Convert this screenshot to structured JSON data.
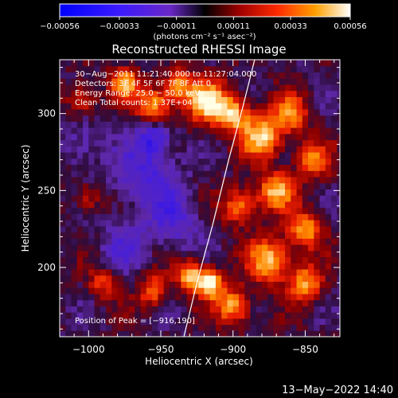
{
  "chart_data": {
    "type": "heatmap",
    "title": "Reconstructed RHESSI Image",
    "xlabel": "Heliocentric X (arcsec)",
    "ylabel": "Heliocentric Y (arcsec)",
    "xlim": [
      -1020,
      -826
    ],
    "ylim": [
      155,
      335
    ],
    "x_ticks": [
      {
        "value": -1000,
        "label": "−1000"
      },
      {
        "value": -950,
        "label": "−950"
      },
      {
        "value": -900,
        "label": "−900"
      },
      {
        "value": -850,
        "label": "−850"
      }
    ],
    "y_ticks": [
      {
        "value": 200,
        "label": "200"
      },
      {
        "value": 250,
        "label": "250"
      },
      {
        "value": 300,
        "label": "300"
      }
    ],
    "colorbar": {
      "min": -0.00056,
      "max": 0.00056,
      "ticks": [
        {
          "value": -0.00056,
          "label": "−0.00056"
        },
        {
          "value": -0.00033,
          "label": "−0.00033"
        },
        {
          "value": -0.00011,
          "label": "−0.00011"
        },
        {
          "value": 0.00011,
          "label": "0.00011"
        },
        {
          "value": 0.00033,
          "label": "0.00033"
        },
        {
          "value": 0.00056,
          "label": "0.00056"
        }
      ],
      "unit_label": "(photons cm⁻² s⁻¹ asec⁻²)"
    },
    "annotations": [
      "30−Aug−2011 11:21:40.000 to 11:27:04.000",
      "Detectors: 3F 4F 5F 6F 7F 8F  Att 0",
      "Energy Range: 25.0 − 50.0 keV",
      "Clean     Total counts: 1.37E+04"
    ],
    "peak_label": "Position of Peak = [−916,190]",
    "peak": [
      -916,
      190
    ],
    "limb_points": [
      [
        -934,
        155
      ],
      [
        -925,
        190
      ],
      [
        -914,
        228
      ],
      [
        -903,
        270
      ],
      [
        -893,
        305
      ],
      [
        -885,
        335
      ]
    ],
    "hot_regions": [
      {
        "x": -975,
        "y": 320,
        "r": 10,
        "v": 0.00042
      },
      {
        "x": -955,
        "y": 305,
        "r": 12,
        "v": 0.00045
      },
      {
        "x": -938,
        "y": 318,
        "r": 10,
        "v": 0.0004
      },
      {
        "x": -918,
        "y": 308,
        "r": 14,
        "v": 0.0005
      },
      {
        "x": -900,
        "y": 300,
        "r": 12,
        "v": 0.00044
      },
      {
        "x": -880,
        "y": 285,
        "r": 14,
        "v": 0.0005
      },
      {
        "x": -860,
        "y": 300,
        "r": 12,
        "v": 0.00038
      },
      {
        "x": -845,
        "y": 270,
        "r": 12,
        "v": 0.00035
      },
      {
        "x": -870,
        "y": 250,
        "r": 12,
        "v": 0.00046
      },
      {
        "x": -895,
        "y": 240,
        "r": 12,
        "v": 0.0004
      },
      {
        "x": -850,
        "y": 225,
        "r": 12,
        "v": 0.00042
      },
      {
        "x": -875,
        "y": 205,
        "r": 14,
        "v": 0.00048
      },
      {
        "x": -850,
        "y": 190,
        "r": 12,
        "v": 0.00042
      },
      {
        "x": -900,
        "y": 175,
        "r": 12,
        "v": 0.00044
      },
      {
        "x": -916,
        "y": 190,
        "r": 9,
        "v": 0.00056
      },
      {
        "x": -930,
        "y": 195,
        "r": 10,
        "v": 0.00046
      },
      {
        "x": -955,
        "y": 185,
        "r": 10,
        "v": 0.00036
      },
      {
        "x": -1005,
        "y": 310,
        "r": 10,
        "v": 0.0003
      },
      {
        "x": -1000,
        "y": 245,
        "r": 9,
        "v": 0.00022
      },
      {
        "x": -990,
        "y": 190,
        "r": 10,
        "v": 0.00026
      }
    ],
    "cold_regions": [
      {
        "x": -960,
        "y": 260,
        "r": 22,
        "v": -0.00026
      },
      {
        "x": -940,
        "y": 230,
        "r": 18,
        "v": -0.00022
      },
      {
        "x": -975,
        "y": 215,
        "r": 16,
        "v": -0.0002
      },
      {
        "x": -1005,
        "y": 280,
        "r": 14,
        "v": -0.00018
      },
      {
        "x": -955,
        "y": 285,
        "r": 12,
        "v": -0.0003
      }
    ]
  },
  "footer": {
    "timestamp": "13−May−2022 14:40"
  }
}
